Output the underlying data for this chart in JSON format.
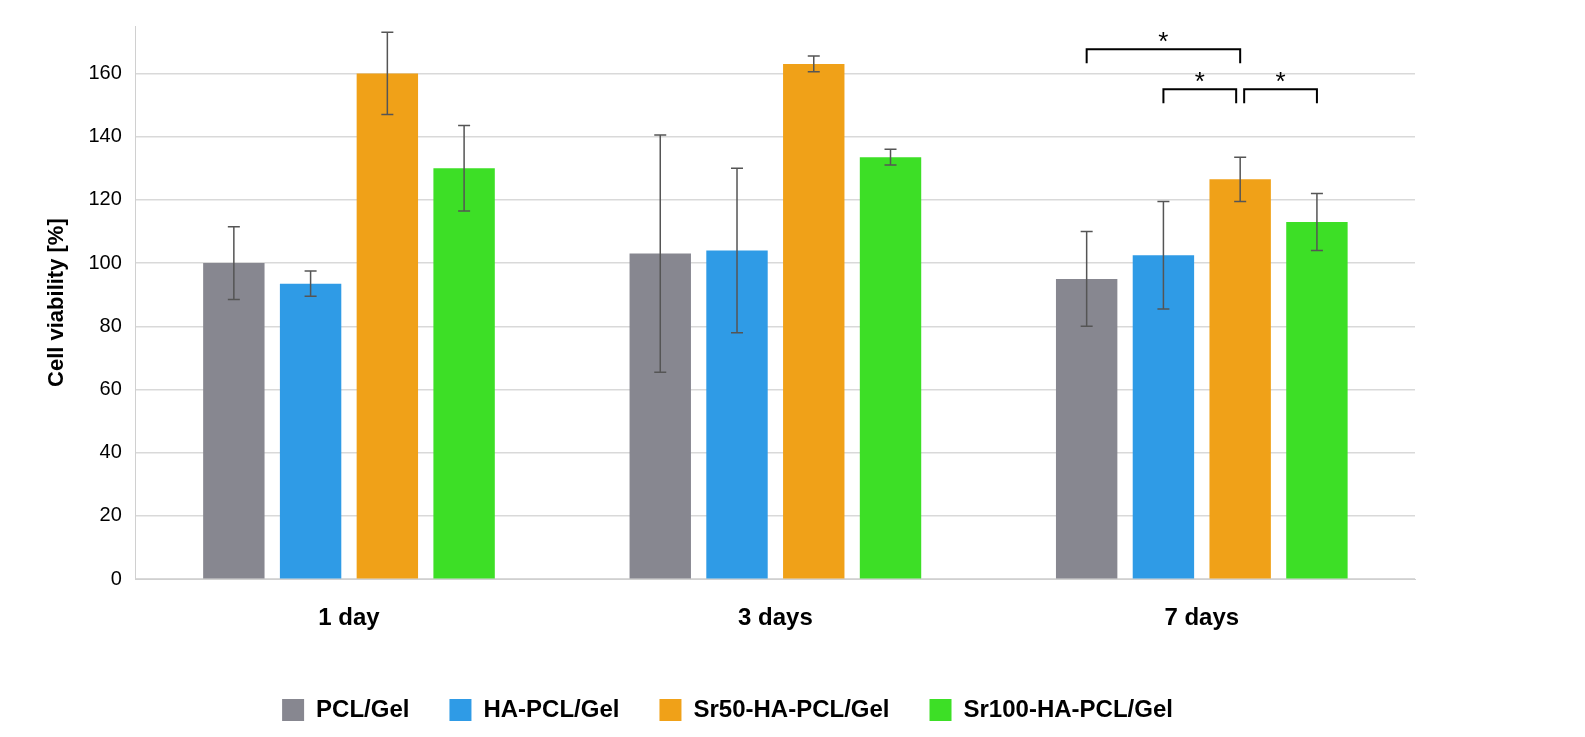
{
  "chart_data": {
    "type": "bar",
    "ylabel": "Cell viability [%]",
    "categories": [
      "1 day",
      "3 days",
      "7 days"
    ],
    "series": [
      {
        "name": "PCL/Gel",
        "color": "#878790",
        "values": [
          100,
          103,
          95
        ],
        "errors": [
          11.5,
          37.5,
          15
        ]
      },
      {
        "name": "HA-PCL/Gel",
        "color": "#2f9be6",
        "values": [
          93.5,
          104,
          102.5
        ],
        "errors": [
          4,
          26,
          17
        ]
      },
      {
        "name": "Sr50-HA-PCL/Gel",
        "color": "#f0a118",
        "values": [
          160,
          163,
          126.5
        ],
        "errors": [
          13,
          2.5,
          7
        ]
      },
      {
        "name": "Sr100-HA-PCL/Gel",
        "color": "#3ddf26",
        "values": [
          130,
          133.5,
          113
        ],
        "errors": [
          13.5,
          2.5,
          9
        ]
      }
    ],
    "ylim": [
      0,
      175
    ],
    "yticks": [
      0,
      20,
      40,
      60,
      80,
      100,
      120,
      140,
      160
    ],
    "grid": "y",
    "legend": "bottom",
    "annotations": [
      "*",
      "*",
      "*"
    ]
  }
}
